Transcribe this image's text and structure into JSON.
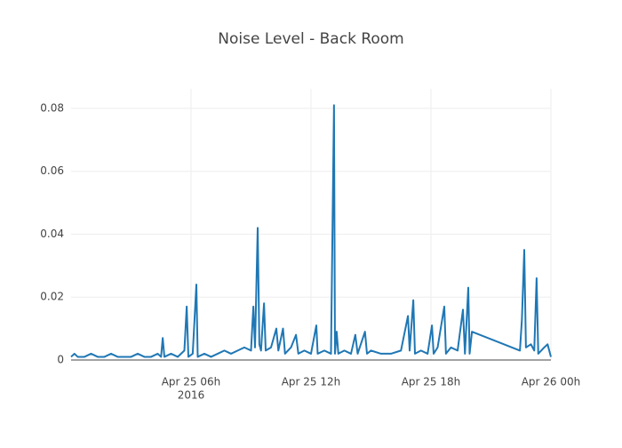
{
  "chart_data": {
    "type": "line",
    "title": "Noise Level - Back Room",
    "x": [
      "2016-04-25 00:00",
      "2016-04-25 00:10",
      "2016-04-25 00:20",
      "2016-04-25 00:40",
      "2016-04-25 01:00",
      "2016-04-25 01:20",
      "2016-04-25 01:40",
      "2016-04-25 02:00",
      "2016-04-25 02:20",
      "2016-04-25 02:40",
      "2016-04-25 03:00",
      "2016-04-25 03:20",
      "2016-04-25 03:40",
      "2016-04-25 04:00",
      "2016-04-25 04:20",
      "2016-04-25 04:30",
      "2016-04-25 04:35",
      "2016-04-25 04:40",
      "2016-04-25 05:00",
      "2016-04-25 05:20",
      "2016-04-25 05:40",
      "2016-04-25 05:47",
      "2016-04-25 05:52",
      "2016-04-25 06:05",
      "2016-04-25 06:16",
      "2016-04-25 06:20",
      "2016-04-25 06:40",
      "2016-04-25 07:00",
      "2016-04-25 07:20",
      "2016-04-25 07:40",
      "2016-04-25 08:00",
      "2016-04-25 08:20",
      "2016-04-25 08:40",
      "2016-04-25 09:00",
      "2016-04-25 09:07",
      "2016-04-25 09:12",
      "2016-04-25 09:20",
      "2016-04-25 09:25",
      "2016-04-25 09:30",
      "2016-04-25 09:39",
      "2016-04-25 09:44",
      "2016-04-25 10:00",
      "2016-04-25 10:16",
      "2016-04-25 10:22",
      "2016-04-25 10:36",
      "2016-04-25 10:42",
      "2016-04-25 11:00",
      "2016-04-25 11:15",
      "2016-04-25 11:22",
      "2016-04-25 11:40",
      "2016-04-25 12:00",
      "2016-04-25 12:16",
      "2016-04-25 12:20",
      "2016-04-25 12:40",
      "2016-04-25 13:00",
      "2016-04-25 13:09",
      "2016-04-25 13:12",
      "2016-04-25 13:17",
      "2016-04-25 13:22",
      "2016-04-25 13:40",
      "2016-04-25 14:00",
      "2016-04-25 14:13",
      "2016-04-25 14:20",
      "2016-04-25 14:42",
      "2016-04-25 14:48",
      "2016-04-25 15:00",
      "2016-04-25 15:30",
      "2016-04-25 16:00",
      "2016-04-25 16:30",
      "2016-04-25 16:51",
      "2016-04-25 16:56",
      "2016-04-25 17:07",
      "2016-04-25 17:12",
      "2016-04-25 17:30",
      "2016-04-25 17:50",
      "2016-04-25 18:03",
      "2016-04-25 18:08",
      "2016-04-25 18:20",
      "2016-04-25 18:40",
      "2016-04-25 18:45",
      "2016-04-25 19:00",
      "2016-04-25 19:20",
      "2016-04-25 19:36",
      "2016-04-25 19:42",
      "2016-04-25 19:52",
      "2016-04-25 19:56",
      "2016-04-25 20:03",
      "2016-04-25 22:27",
      "2016-04-25 22:33",
      "2016-04-25 22:40",
      "2016-04-25 22:45",
      "2016-04-25 23:00",
      "2016-04-25 23:10",
      "2016-04-25 23:17",
      "2016-04-25 23:22",
      "2016-04-25 23:40",
      "2016-04-25 23:50",
      "2016-04-26 00:00"
    ],
    "series": [
      {
        "color": "#1f77b4",
        "values": [
          0.001,
          0.002,
          0.001,
          0.001,
          0.002,
          0.001,
          0.001,
          0.002,
          0.001,
          0.001,
          0.001,
          0.002,
          0.001,
          0.001,
          0.002,
          0.001,
          0.007,
          0.001,
          0.002,
          0.001,
          0.003,
          0.017,
          0.001,
          0.002,
          0.024,
          0.001,
          0.002,
          0.001,
          0.002,
          0.003,
          0.002,
          0.003,
          0.004,
          0.003,
          0.017,
          0.004,
          0.042,
          0.005,
          0.003,
          0.018,
          0.003,
          0.004,
          0.01,
          0.003,
          0.01,
          0.002,
          0.004,
          0.008,
          0.002,
          0.003,
          0.002,
          0.011,
          0.002,
          0.003,
          0.002,
          0.081,
          0.002,
          0.009,
          0.002,
          0.003,
          0.002,
          0.008,
          0.002,
          0.009,
          0.002,
          0.003,
          0.002,
          0.002,
          0.003,
          0.014,
          0.003,
          0.019,
          0.002,
          0.003,
          0.002,
          0.011,
          0.002,
          0.004,
          0.017,
          0.002,
          0.004,
          0.003,
          0.016,
          0.002,
          0.023,
          0.002,
          0.009,
          0.003,
          0.013,
          0.035,
          0.004,
          0.005,
          0.003,
          0.026,
          0.002,
          0.004,
          0.005,
          0.001
        ]
      }
    ],
    "xlim": [
      "2016-04-25 00:00",
      "2016-04-26 00:00"
    ],
    "xticks": [
      {
        "value": "2016-04-25 06:00",
        "label": "Apr 25 06h",
        "sublabel": "2016"
      },
      {
        "value": "2016-04-25 12:00",
        "label": "Apr 25 12h"
      },
      {
        "value": "2016-04-25 18:00",
        "label": "Apr 25 18h"
      },
      {
        "value": "2016-04-26 00:00",
        "label": "Apr 26 00h"
      }
    ],
    "ylim": [
      0,
      0.0862
    ],
    "yticks": [
      0,
      0.02,
      0.04,
      0.06,
      0.08
    ],
    "grid": true
  }
}
